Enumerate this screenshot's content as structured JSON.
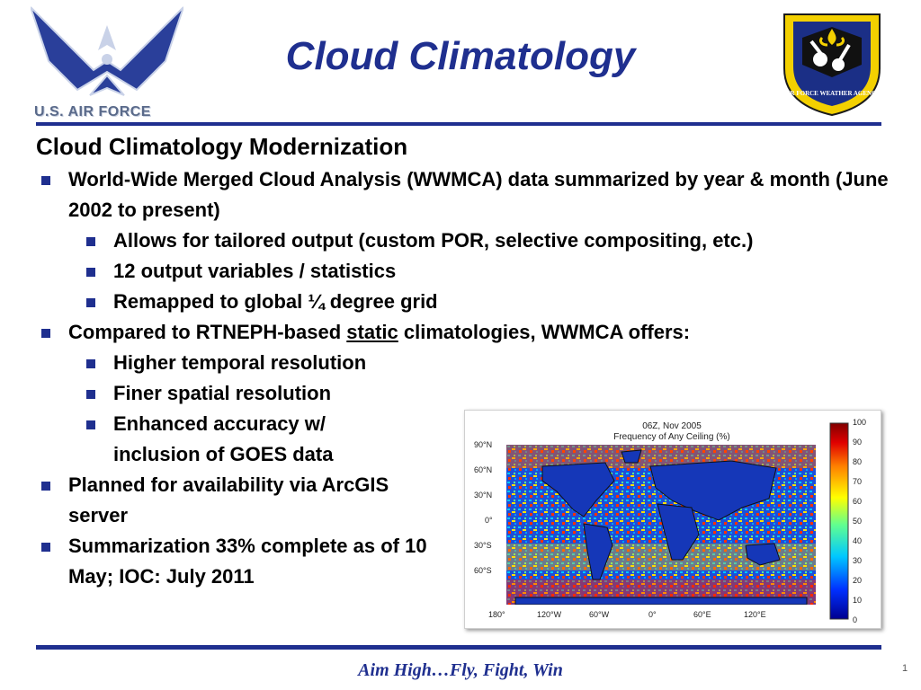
{
  "header": {
    "title": "Cloud Climatology",
    "left_logo_text": "U.S. AIR FORCE",
    "right_seal_text": "AIR FORCE WEATHER AGENCY"
  },
  "content": {
    "heading": "Cloud Climatology Modernization",
    "bullets": [
      "World-Wide Merged Cloud Analysis (WWMCA) data summarized by year & month (June 2002 to present)",
      "Allows for tailored output (custom POR, selective compositing, etc.)",
      "12 output variables / statistics",
      "Remapped to global ¼ degree grid",
      "Compared to RTNEPH-based",
      "static",
      "climatologies, WWMCA offers:",
      "Higher temporal resolution",
      "Finer spatial resolution",
      "Enhanced accuracy w/ inclusion of GOES data",
      "Planned for availability via ArcGIS server",
      "Summarization 33% complete as of 10 May; IOC: July 2011"
    ]
  },
  "map": {
    "title_line1": "06Z, Nov 2005",
    "title_line2": "Frequency of Any Ceiling (%)",
    "lat_labels": [
      "90°N",
      "60°N",
      "30°N",
      "0°",
      "30°S",
      "60°S"
    ],
    "lon_labels": [
      "180°",
      "120°W",
      "60°W",
      "0°",
      "60°E",
      "120°E"
    ],
    "colorbar_ticks": [
      "100",
      "90",
      "80",
      "70",
      "60",
      "50",
      "40",
      "30",
      "20",
      "10",
      "0"
    ]
  },
  "footer": {
    "motto": "Aim High…Fly, Fight, Win",
    "page_number": "1"
  },
  "colors": {
    "accent": "#1f2f8f",
    "map_ocean": "#1e4fd8",
    "colorbar": [
      "#00008f",
      "#0060ff",
      "#00e0ff",
      "#60ff90",
      "#ffff00",
      "#ff8000",
      "#e00000",
      "#800000"
    ]
  }
}
